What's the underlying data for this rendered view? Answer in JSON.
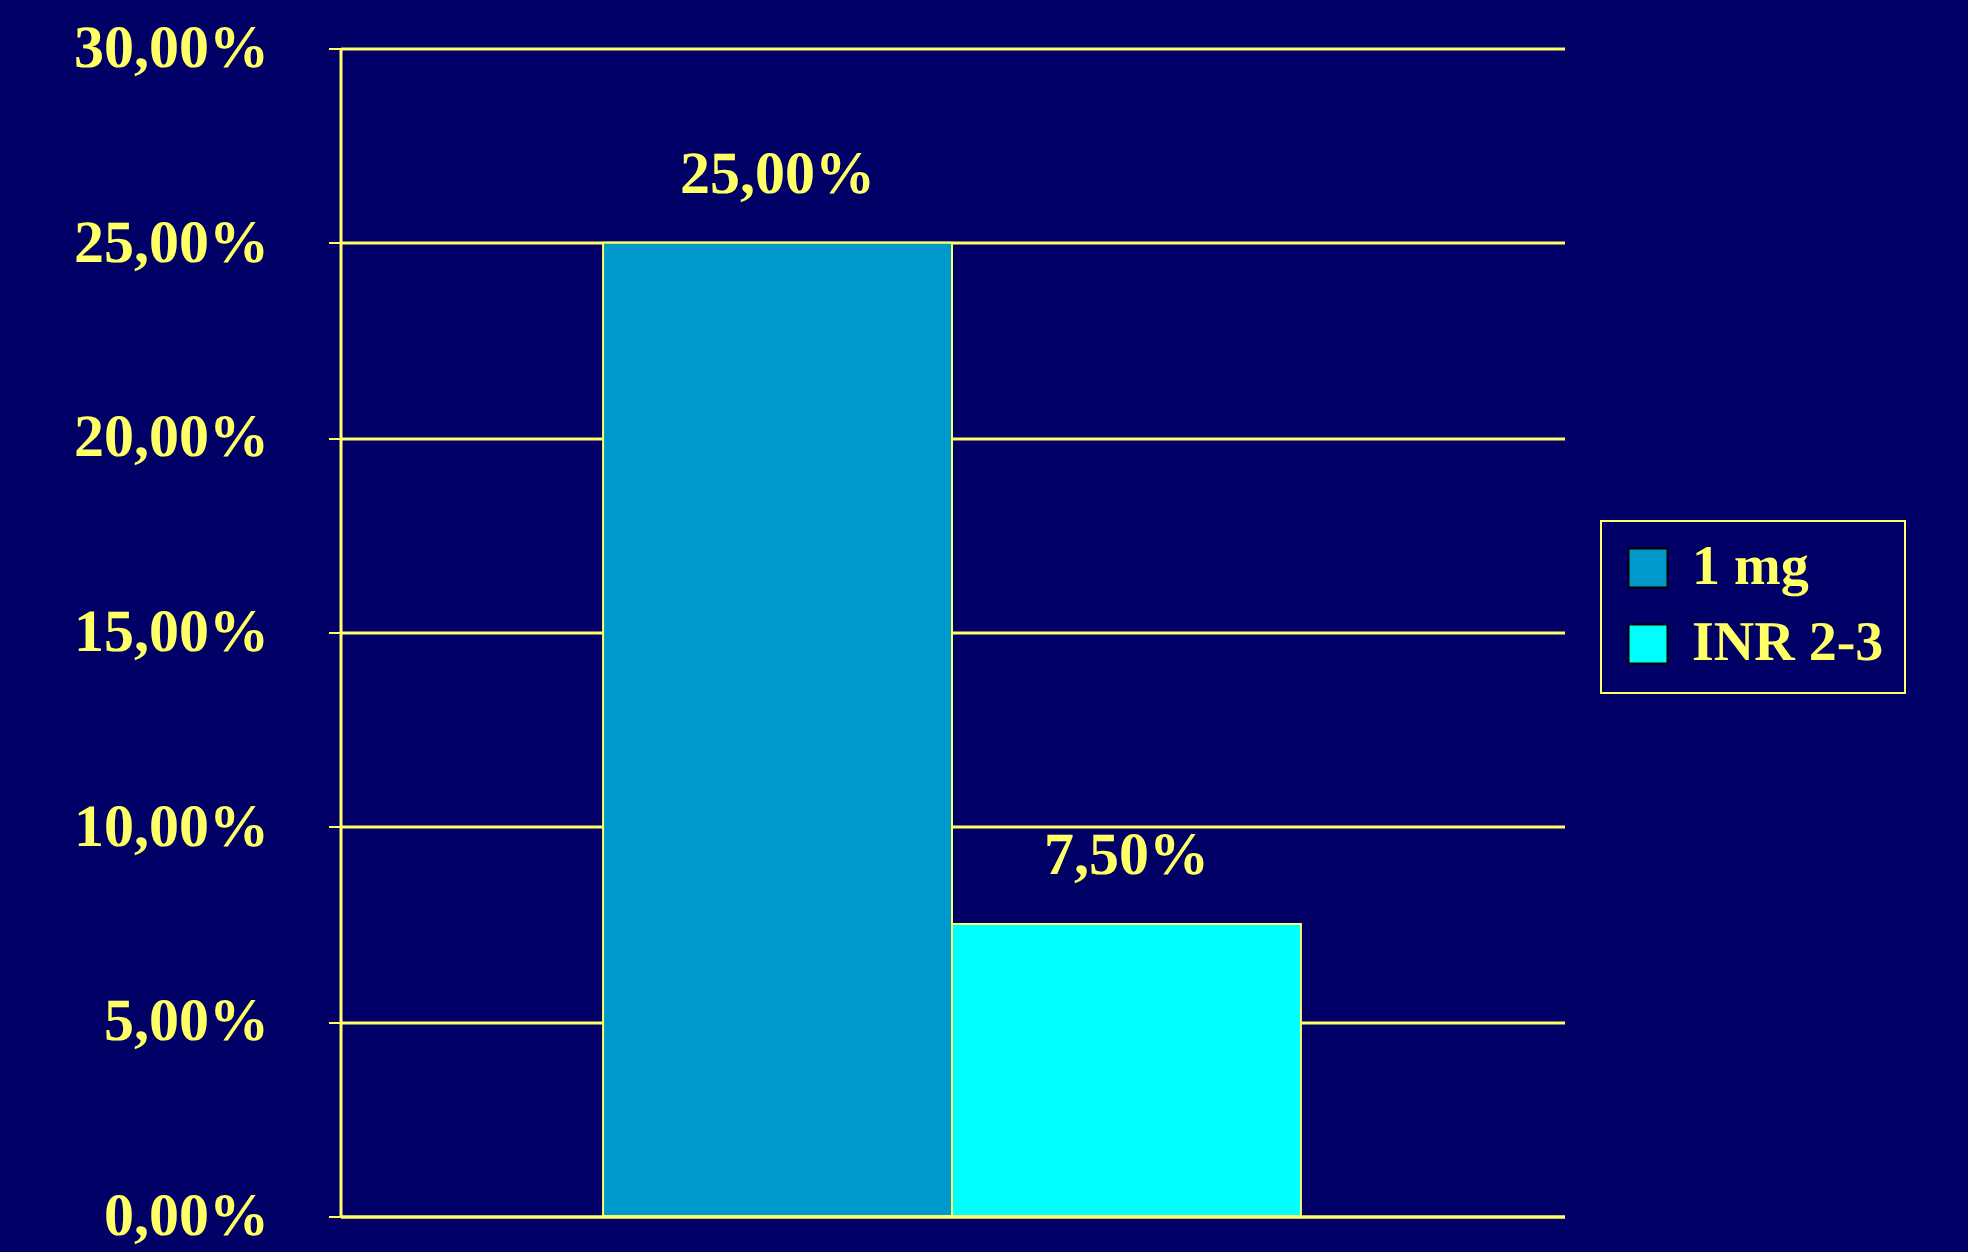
{
  "chart_data": {
    "type": "bar",
    "categories": [
      null
    ],
    "series": [
      {
        "name": "1 mg",
        "color": "#0099cc",
        "values": [
          25
        ],
        "value_labels": [
          "25,00%"
        ]
      },
      {
        "name": "INR 2-3",
        "color": "#00ffff",
        "values": [
          7.5
        ],
        "value_labels": [
          "7,50%"
        ]
      }
    ],
    "ylim": [
      0,
      30
    ],
    "yticks": [
      {
        "value": 0,
        "label": "0,00%"
      },
      {
        "value": 5,
        "label": "5,00%"
      },
      {
        "value": 10,
        "label": "10,00%"
      },
      {
        "value": 15,
        "label": "15,00%"
      },
      {
        "value": 20,
        "label": "20,00%"
      },
      {
        "value": 25,
        "label": "25,00%"
      },
      {
        "value": 30,
        "label": "30,00%"
      }
    ],
    "grid": "y",
    "legend": "right"
  }
}
